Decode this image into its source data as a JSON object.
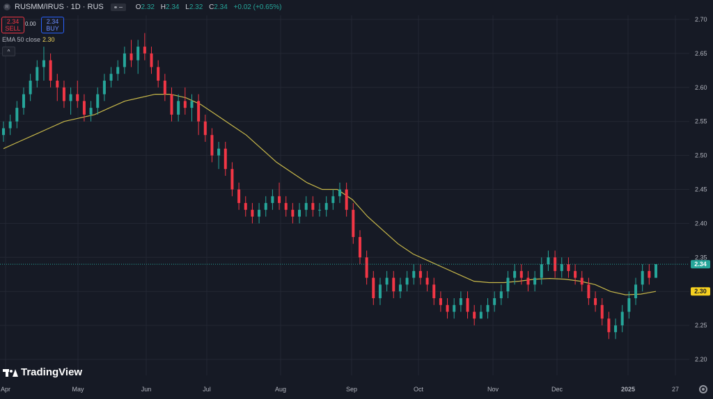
{
  "header": {
    "symbol_title": "RUSMM/IRUS · 1D · RUS",
    "symbol_icon_letter": "R",
    "ohlc": [
      {
        "key": "O",
        "value": "2.32"
      },
      {
        "key": "H",
        "value": "2.34"
      },
      {
        "key": "L",
        "value": "2.32"
      },
      {
        "key": "C",
        "value": "2.34"
      },
      {
        "key": "",
        "value": "+0.02 (+0.65%)"
      }
    ]
  },
  "trade": {
    "sell_price": "2.34",
    "sell_label": "SELL",
    "spread": "0.00",
    "buy_price": "2.34",
    "buy_label": "BUY"
  },
  "indicator": {
    "label": "EMA 50 close",
    "value": "2.30",
    "color": "#f2d65c"
  },
  "collapse_glyph": "^",
  "brand": "TradingView",
  "colors": {
    "up": "#26a69a",
    "down": "#f23645",
    "ema": "#c9b94a",
    "background": "#161a25",
    "last_price_tag": "#26a69a",
    "ema_tag": "#f5d020"
  },
  "chart_data": {
    "type": "candlestick",
    "y_range": [
      2.19,
      2.72
    ],
    "y_ticks": [
      "2.70",
      "2.65",
      "2.60",
      "2.55",
      "2.50",
      "2.45",
      "2.40",
      "2.35",
      "2.30",
      "2.25",
      "2.20"
    ],
    "x_labels": [
      "Apr",
      "May",
      "Jun",
      "Jul",
      "Aug",
      "Sep",
      "Oct",
      "Nov",
      "Dec",
      "2025",
      "27"
    ],
    "last_price": "2.34",
    "ema_value": "2.30",
    "candles": [
      [
        2.53,
        2.55,
        2.52,
        2.54
      ],
      [
        2.54,
        2.56,
        2.53,
        2.55
      ],
      [
        2.55,
        2.58,
        2.54,
        2.57
      ],
      [
        2.57,
        2.6,
        2.56,
        2.59
      ],
      [
        2.59,
        2.62,
        2.58,
        2.61
      ],
      [
        2.61,
        2.64,
        2.6,
        2.63
      ],
      [
        2.63,
        2.66,
        2.61,
        2.64
      ],
      [
        2.64,
        2.65,
        2.6,
        2.61
      ],
      [
        2.61,
        2.62,
        2.58,
        2.6
      ],
      [
        2.6,
        2.61,
        2.57,
        2.58
      ],
      [
        2.58,
        2.6,
        2.56,
        2.59
      ],
      [
        2.59,
        2.61,
        2.57,
        2.58
      ],
      [
        2.58,
        2.59,
        2.55,
        2.56
      ],
      [
        2.56,
        2.58,
        2.55,
        2.57
      ],
      [
        2.57,
        2.6,
        2.56,
        2.59
      ],
      [
        2.59,
        2.62,
        2.58,
        2.61
      ],
      [
        2.61,
        2.63,
        2.6,
        2.62
      ],
      [
        2.62,
        2.64,
        2.61,
        2.63
      ],
      [
        2.63,
        2.66,
        2.62,
        2.65
      ],
      [
        2.65,
        2.67,
        2.63,
        2.64
      ],
      [
        2.64,
        2.67,
        2.62,
        2.66
      ],
      [
        2.66,
        2.68,
        2.64,
        2.65
      ],
      [
        2.65,
        2.66,
        2.62,
        2.63
      ],
      [
        2.63,
        2.64,
        2.6,
        2.61
      ],
      [
        2.61,
        2.62,
        2.58,
        2.59
      ],
      [
        2.59,
        2.6,
        2.55,
        2.56
      ],
      [
        2.56,
        2.59,
        2.55,
        2.58
      ],
      [
        2.58,
        2.6,
        2.56,
        2.57
      ],
      [
        2.57,
        2.59,
        2.55,
        2.58
      ],
      [
        2.58,
        2.59,
        2.53,
        2.55
      ],
      [
        2.55,
        2.56,
        2.52,
        2.53
      ],
      [
        2.53,
        2.54,
        2.49,
        2.5
      ],
      [
        2.5,
        2.52,
        2.48,
        2.51
      ],
      [
        2.51,
        2.52,
        2.47,
        2.48
      ],
      [
        2.48,
        2.49,
        2.44,
        2.45
      ],
      [
        2.45,
        2.46,
        2.42,
        2.43
      ],
      [
        2.43,
        2.44,
        2.41,
        2.42
      ],
      [
        2.42,
        2.43,
        2.4,
        2.41
      ],
      [
        2.41,
        2.43,
        2.4,
        2.42
      ],
      [
        2.42,
        2.44,
        2.41,
        2.43
      ],
      [
        2.43,
        2.45,
        2.42,
        2.44
      ],
      [
        2.44,
        2.46,
        2.42,
        2.43
      ],
      [
        2.43,
        2.44,
        2.41,
        2.42
      ],
      [
        2.42,
        2.43,
        2.4,
        2.41
      ],
      [
        2.41,
        2.43,
        2.4,
        2.42
      ],
      [
        2.42,
        2.44,
        2.41,
        2.43
      ],
      [
        2.43,
        2.44,
        2.41,
        2.42
      ],
      [
        2.42,
        2.43,
        2.41,
        2.42
      ],
      [
        2.42,
        2.44,
        2.41,
        2.43
      ],
      [
        2.43,
        2.45,
        2.42,
        2.44
      ],
      [
        2.44,
        2.46,
        2.43,
        2.45
      ],
      [
        2.45,
        2.46,
        2.41,
        2.42
      ],
      [
        2.42,
        2.43,
        2.37,
        2.38
      ],
      [
        2.38,
        2.39,
        2.34,
        2.35
      ],
      [
        2.35,
        2.36,
        2.31,
        2.32
      ],
      [
        2.32,
        2.33,
        2.28,
        2.29
      ],
      [
        2.29,
        2.32,
        2.28,
        2.31
      ],
      [
        2.31,
        2.33,
        2.3,
        2.32
      ],
      [
        2.32,
        2.33,
        2.29,
        2.3
      ],
      [
        2.3,
        2.32,
        2.29,
        2.31
      ],
      [
        2.31,
        2.33,
        2.3,
        2.32
      ],
      [
        2.32,
        2.34,
        2.31,
        2.33
      ],
      [
        2.33,
        2.34,
        2.31,
        2.32
      ],
      [
        2.32,
        2.33,
        2.3,
        2.31
      ],
      [
        2.31,
        2.32,
        2.28,
        2.29
      ],
      [
        2.29,
        2.3,
        2.27,
        2.28
      ],
      [
        2.28,
        2.29,
        2.26,
        2.27
      ],
      [
        2.27,
        2.29,
        2.26,
        2.28
      ],
      [
        2.28,
        2.3,
        2.27,
        2.29
      ],
      [
        2.29,
        2.3,
        2.26,
        2.27
      ],
      [
        2.27,
        2.28,
        2.25,
        2.26
      ],
      [
        2.26,
        2.28,
        2.26,
        2.27
      ],
      [
        2.27,
        2.29,
        2.26,
        2.28
      ],
      [
        2.28,
        2.3,
        2.27,
        2.29
      ],
      [
        2.29,
        2.31,
        2.28,
        2.3
      ],
      [
        2.3,
        2.33,
        2.29,
        2.32
      ],
      [
        2.32,
        2.34,
        2.31,
        2.33
      ],
      [
        2.33,
        2.34,
        2.31,
        2.32
      ],
      [
        2.32,
        2.33,
        2.3,
        2.31
      ],
      [
        2.31,
        2.33,
        2.3,
        2.32
      ],
      [
        2.32,
        2.35,
        2.31,
        2.34
      ],
      [
        2.34,
        2.36,
        2.33,
        2.35
      ],
      [
        2.35,
        2.36,
        2.32,
        2.33
      ],
      [
        2.33,
        2.35,
        2.32,
        2.34
      ],
      [
        2.34,
        2.35,
        2.32,
        2.33
      ],
      [
        2.33,
        2.34,
        2.31,
        2.32
      ],
      [
        2.32,
        2.33,
        2.3,
        2.31
      ],
      [
        2.31,
        2.32,
        2.28,
        2.29
      ],
      [
        2.29,
        2.3,
        2.27,
        2.28
      ],
      [
        2.28,
        2.29,
        2.25,
        2.26
      ],
      [
        2.26,
        2.27,
        2.23,
        2.24
      ],
      [
        2.24,
        2.26,
        2.23,
        2.25
      ],
      [
        2.25,
        2.28,
        2.24,
        2.27
      ],
      [
        2.27,
        2.3,
        2.26,
        2.29
      ],
      [
        2.29,
        2.32,
        2.28,
        2.31
      ],
      [
        2.31,
        2.34,
        2.3,
        2.33
      ],
      [
        2.33,
        2.34,
        2.31,
        2.32
      ],
      [
        2.32,
        2.34,
        2.32,
        2.34
      ]
    ],
    "ema": [
      2.51,
      2.52,
      2.53,
      2.54,
      2.55,
      2.555,
      2.56,
      2.57,
      2.58,
      2.585,
      2.59,
      2.59,
      2.585,
      2.575,
      2.56,
      2.545,
      2.53,
      2.51,
      2.49,
      2.475,
      2.46,
      2.45,
      2.45,
      2.435,
      2.41,
      2.39,
      2.37,
      2.355,
      2.345,
      2.335,
      2.325,
      2.315,
      2.313,
      2.313,
      2.315,
      2.318,
      2.319,
      2.318,
      2.315,
      2.31,
      2.3,
      2.295,
      2.296,
      2.3
    ]
  }
}
